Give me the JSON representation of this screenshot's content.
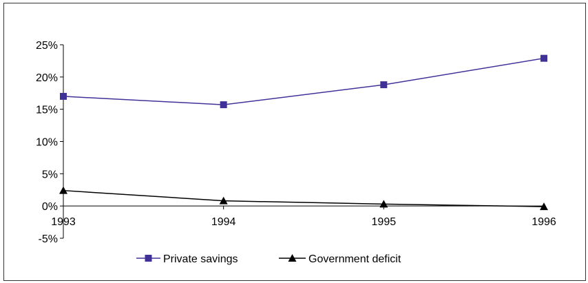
{
  "chart_data": {
    "type": "line",
    "title": "",
    "xlabel": "",
    "ylabel": "",
    "categories": [
      "1993",
      "1994",
      "1995",
      "1996"
    ],
    "y_ticks": [
      "-5%",
      "0%",
      "5%",
      "10%",
      "15%",
      "20%",
      "25%"
    ],
    "ylim": [
      -5,
      25
    ],
    "y_unit": "percent",
    "grid": false,
    "legend_position": "bottom",
    "series": [
      {
        "name": "Private savings",
        "values": [
          17.0,
          15.7,
          18.8,
          22.9
        ],
        "color": "#3f3198",
        "marker": "square"
      },
      {
        "name": "Government deficit",
        "values": [
          2.4,
          0.8,
          0.3,
          -0.1
        ],
        "color": "#000000",
        "marker": "triangle"
      }
    ]
  }
}
